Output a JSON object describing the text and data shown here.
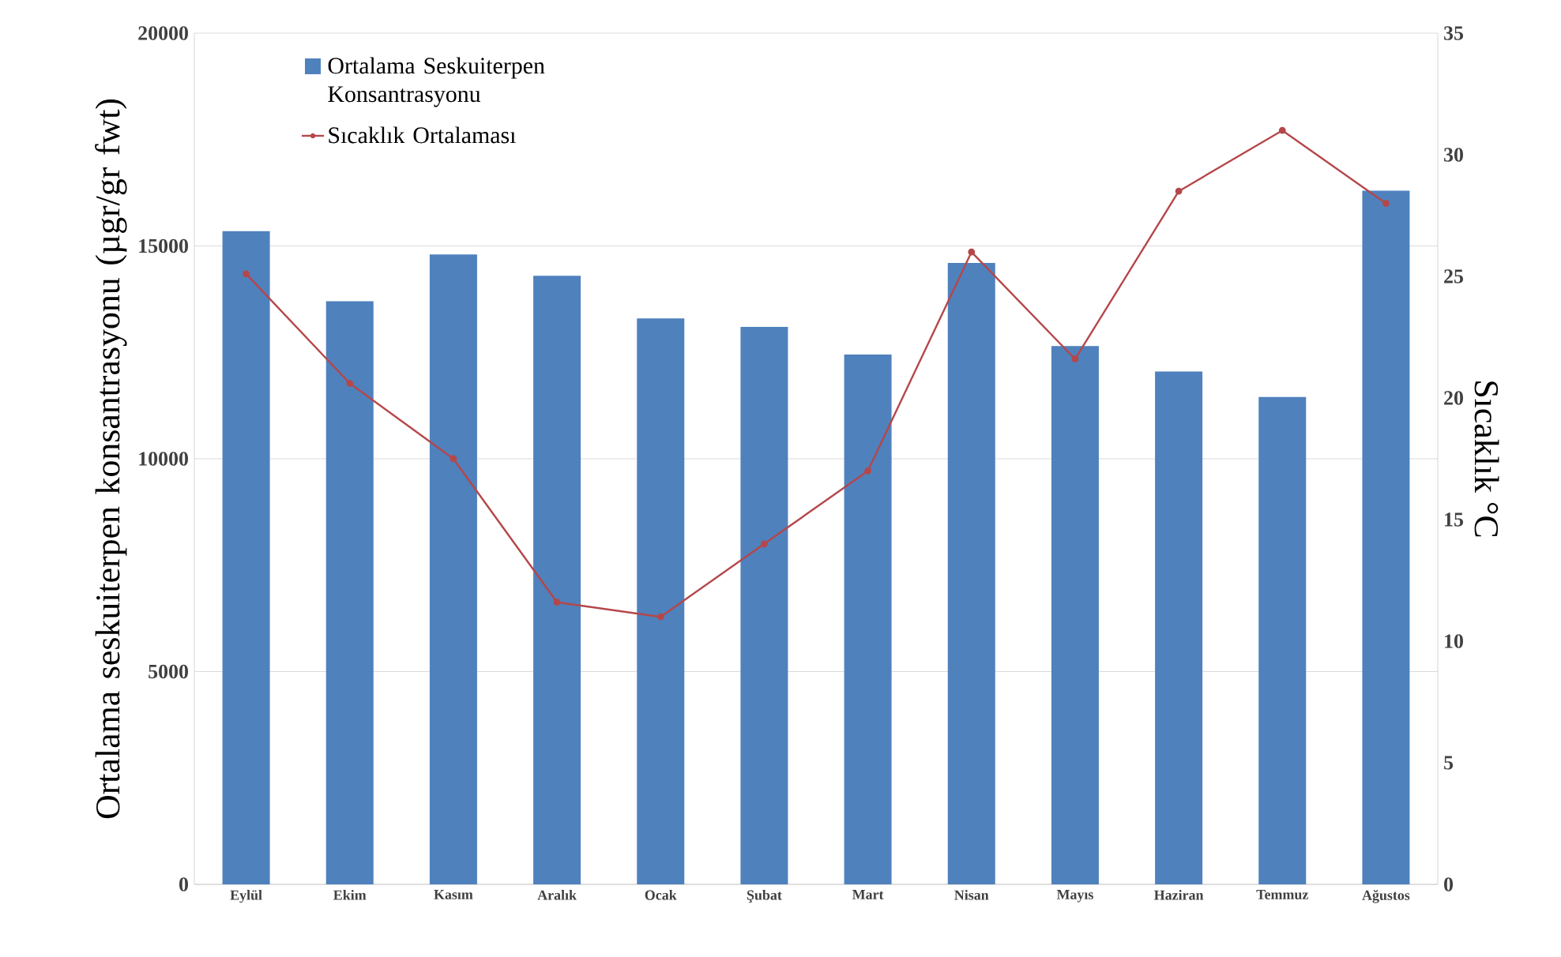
{
  "chart_data": {
    "type": "bar",
    "categories": [
      "Eylül",
      "Ekim",
      "Kasım",
      "Aralık",
      "Ocak",
      "Şubat",
      "Mart",
      "Nisan",
      "Mayıs",
      "Haziran",
      "Temmuz",
      "Ağustos"
    ],
    "series": [
      {
        "name": "Ortalama Seskuiterpen Konsantrasyonu",
        "color": "#4f81bd",
        "values": [
          15350,
          13700,
          14800,
          14300,
          13300,
          13100,
          12450,
          14600,
          12650,
          12050,
          11450,
          16300
        ]
      },
      {
        "name": "Sıcaklık Ortalaması",
        "type": "line",
        "axis": "y2",
        "color": "#b5474a",
        "values": [
          25.1,
          20.6,
          17.5,
          11.6,
          11.0,
          14.0,
          17.0,
          26.0,
          21.6,
          28.5,
          31.0,
          28.0
        ]
      }
    ],
    "ylabel": "Ortalama seskuiterpen konsantrasyonu (µgr/gr fwt)",
    "y2label": "Sıcaklık °C",
    "ylim": [
      0,
      20000
    ],
    "yticks": [
      0,
      5000,
      10000,
      15000,
      20000
    ],
    "y2lim": [
      0,
      35
    ],
    "y2ticks": [
      0,
      5,
      10,
      15,
      20,
      25,
      30,
      35
    ],
    "grid": "y",
    "legend": "top left",
    "marker": "circle"
  }
}
